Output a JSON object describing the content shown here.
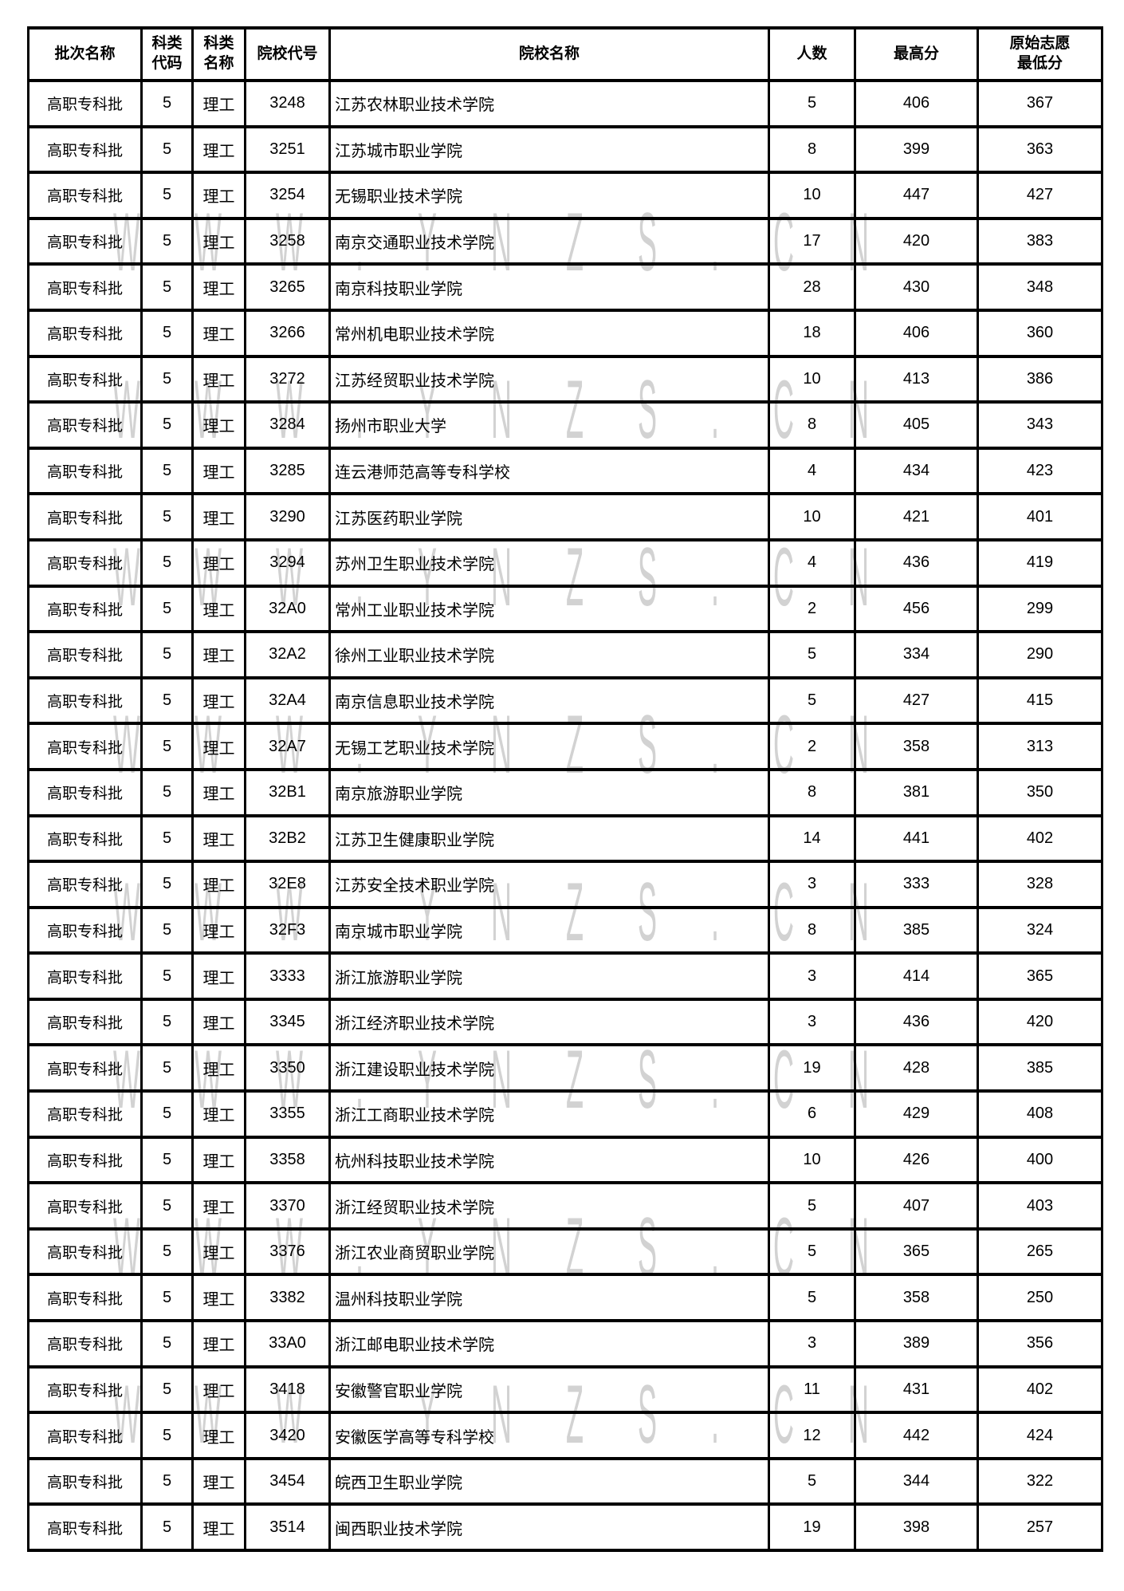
{
  "watermark": {
    "text": "WWW.YNZS.CN",
    "color": "#d2d2d2"
  },
  "table": {
    "columns": [
      {
        "key": "batch",
        "label": "批次名称"
      },
      {
        "key": "subject-code",
        "label": "科类\n代码"
      },
      {
        "key": "subject-name",
        "label": "科类\n名称"
      },
      {
        "key": "college-code",
        "label": "院校代号"
      },
      {
        "key": "college-name",
        "label": "院校名称"
      },
      {
        "key": "count",
        "label": "人数"
      },
      {
        "key": "max-score",
        "label": "最高分"
      },
      {
        "key": "min-score",
        "label": "原始志愿\n最低分"
      }
    ],
    "rows": [
      [
        "高职专科批",
        "5",
        "理工",
        "3248",
        "江苏农林职业技术学院",
        "5",
        "406",
        "367"
      ],
      [
        "高职专科批",
        "5",
        "理工",
        "3251",
        "江苏城市职业学院",
        "8",
        "399",
        "363"
      ],
      [
        "高职专科批",
        "5",
        "理工",
        "3254",
        "无锡职业技术学院",
        "10",
        "447",
        "427"
      ],
      [
        "高职专科批",
        "5",
        "理工",
        "3258",
        "南京交通职业技术学院",
        "17",
        "420",
        "383"
      ],
      [
        "高职专科批",
        "5",
        "理工",
        "3265",
        "南京科技职业学院",
        "28",
        "430",
        "348"
      ],
      [
        "高职专科批",
        "5",
        "理工",
        "3266",
        "常州机电职业技术学院",
        "18",
        "406",
        "360"
      ],
      [
        "高职专科批",
        "5",
        "理工",
        "3272",
        "江苏经贸职业技术学院",
        "10",
        "413",
        "386"
      ],
      [
        "高职专科批",
        "5",
        "理工",
        "3284",
        "扬州市职业大学",
        "8",
        "405",
        "343"
      ],
      [
        "高职专科批",
        "5",
        "理工",
        "3285",
        "连云港师范高等专科学校",
        "4",
        "434",
        "423"
      ],
      [
        "高职专科批",
        "5",
        "理工",
        "3290",
        "江苏医药职业学院",
        "10",
        "421",
        "401"
      ],
      [
        "高职专科批",
        "5",
        "理工",
        "3294",
        "苏州卫生职业技术学院",
        "4",
        "436",
        "419"
      ],
      [
        "高职专科批",
        "5",
        "理工",
        "32A0",
        "常州工业职业技术学院",
        "2",
        "456",
        "299"
      ],
      [
        "高职专科批",
        "5",
        "理工",
        "32A2",
        "徐州工业职业技术学院",
        "5",
        "334",
        "290"
      ],
      [
        "高职专科批",
        "5",
        "理工",
        "32A4",
        "南京信息职业技术学院",
        "5",
        "427",
        "415"
      ],
      [
        "高职专科批",
        "5",
        "理工",
        "32A7",
        "无锡工艺职业技术学院",
        "2",
        "358",
        "313"
      ],
      [
        "高职专科批",
        "5",
        "理工",
        "32B1",
        "南京旅游职业学院",
        "8",
        "381",
        "350"
      ],
      [
        "高职专科批",
        "5",
        "理工",
        "32B2",
        "江苏卫生健康职业学院",
        "14",
        "441",
        "402"
      ],
      [
        "高职专科批",
        "5",
        "理工",
        "32E8",
        "江苏安全技术职业学院",
        "3",
        "333",
        "328"
      ],
      [
        "高职专科批",
        "5",
        "理工",
        "32F3",
        "南京城市职业学院",
        "8",
        "385",
        "324"
      ],
      [
        "高职专科批",
        "5",
        "理工",
        "3333",
        "浙江旅游职业学院",
        "3",
        "414",
        "365"
      ],
      [
        "高职专科批",
        "5",
        "理工",
        "3345",
        "浙江经济职业技术学院",
        "3",
        "436",
        "420"
      ],
      [
        "高职专科批",
        "5",
        "理工",
        "3350",
        "浙江建设职业技术学院",
        "19",
        "428",
        "385"
      ],
      [
        "高职专科批",
        "5",
        "理工",
        "3355",
        "浙江工商职业技术学院",
        "6",
        "429",
        "408"
      ],
      [
        "高职专科批",
        "5",
        "理工",
        "3358",
        "杭州科技职业技术学院",
        "10",
        "426",
        "400"
      ],
      [
        "高职专科批",
        "5",
        "理工",
        "3370",
        "浙江经贸职业技术学院",
        "5",
        "407",
        "403"
      ],
      [
        "高职专科批",
        "5",
        "理工",
        "3376",
        "浙江农业商贸职业学院",
        "5",
        "365",
        "265"
      ],
      [
        "高职专科批",
        "5",
        "理工",
        "3382",
        "温州科技职业学院",
        "5",
        "358",
        "250"
      ],
      [
        "高职专科批",
        "5",
        "理工",
        "33A0",
        "浙江邮电职业技术学院",
        "3",
        "389",
        "356"
      ],
      [
        "高职专科批",
        "5",
        "理工",
        "3418",
        "安徽警官职业学院",
        "11",
        "431",
        "402"
      ],
      [
        "高职专科批",
        "5",
        "理工",
        "3420",
        "安徽医学高等专科学校",
        "12",
        "442",
        "424"
      ],
      [
        "高职专科批",
        "5",
        "理工",
        "3454",
        "皖西卫生职业学院",
        "5",
        "344",
        "322"
      ],
      [
        "高职专科批",
        "5",
        "理工",
        "3514",
        "闽西职业技术学院",
        "19",
        "398",
        "257"
      ]
    ]
  }
}
